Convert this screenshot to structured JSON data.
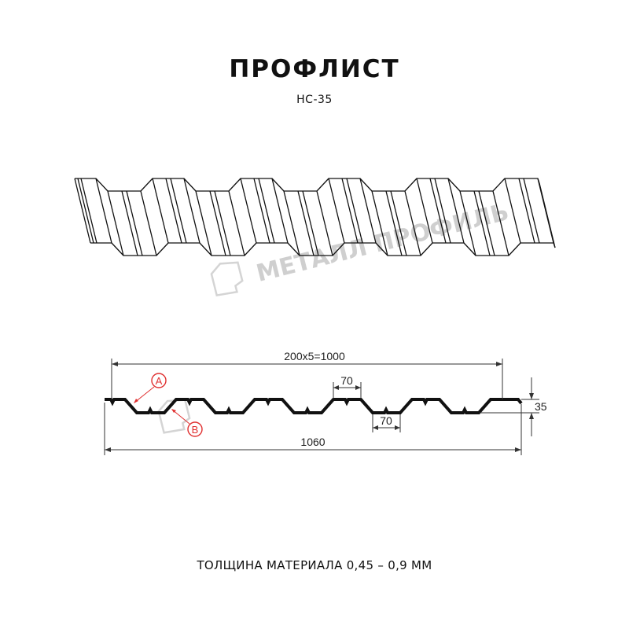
{
  "title": "ПРОФЛИСТ",
  "model": "НС-35",
  "thickness_note": "ТОЛЩИНА МАТЕРИАЛА 0,45 – 0,9 ММ",
  "watermark": "МЕТАЛЛ ПРОФИЛЬ",
  "dimensions": {
    "pitch_total": "200x5=1000",
    "top_width": "70",
    "bottom_width": "70",
    "total_width": "1060",
    "height": "35"
  },
  "callouts": {
    "a": "A",
    "b": "B"
  },
  "colors": {
    "profile": "#111111",
    "callout": "#e03030",
    "watermark": "#cfcfcf"
  }
}
